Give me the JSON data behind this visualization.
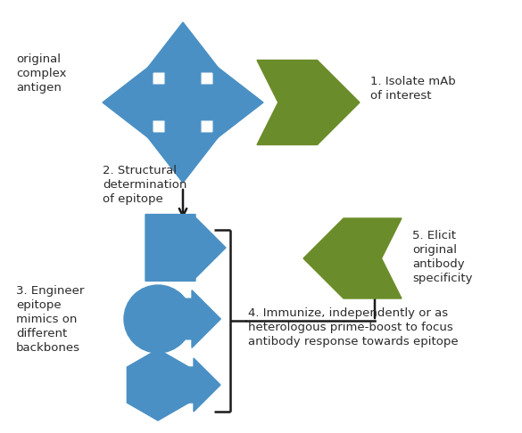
{
  "blue": "#4A90C4",
  "green": "#6B8C2A",
  "black": "#1a1a1a",
  "white": "#FFFFFF",
  "bg": "#FFFFFF",
  "text_color": "#2a2a2a",
  "figsize": [
    5.85,
    4.86
  ],
  "dpi": 100,
  "labels": {
    "original": "original\ncomplex\nantigen",
    "step1": "1. Isolate mAb\nof interest",
    "step2": "2. Structural\ndetermination\nof epitope",
    "step3": "3. Engineer\nepitope\nmimics on\ndifferent\nbackbones",
    "step4": "4. Immunize, independently or as\nheterologous prime-boost to focus\nantibody response towards epitope",
    "step5": "5. Elicit\noriginal\nantibody\nspecificity"
  }
}
